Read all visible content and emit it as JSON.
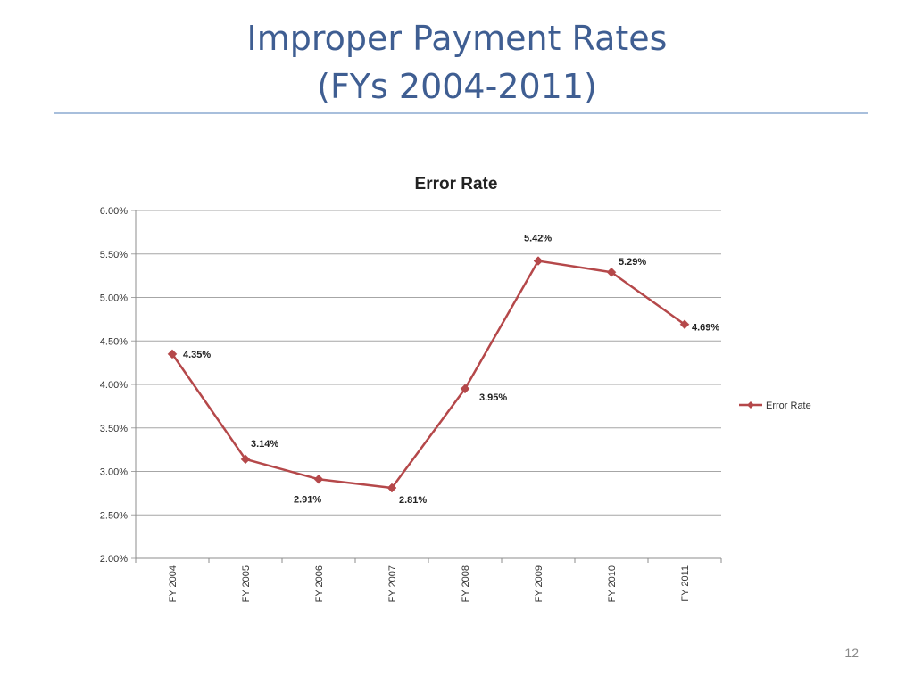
{
  "slide": {
    "title_line1": "Improper Payment Rates",
    "title_line2": "(FYs 2004-2011)",
    "page_number": "12"
  },
  "colors": {
    "title": "#3f5e92",
    "rule": "#a8bfdc",
    "series_line": "#b5484a",
    "gridline": "#a6a6a6"
  },
  "chart_data": {
    "type": "line",
    "title": "Error Rate",
    "xlabel": "",
    "ylabel": "",
    "categories": [
      "FY 2004",
      "FY 2005",
      "FY 2006",
      "FY 2007",
      "FY 2008",
      "FY 2009",
      "FY 2010",
      "FY 2011"
    ],
    "series": [
      {
        "name": "Error Rate",
        "values": [
          4.35,
          3.14,
          2.91,
          2.81,
          3.95,
          5.42,
          5.29,
          4.69
        ],
        "data_labels": [
          "4.35%",
          "3.14%",
          "2.91%",
          "2.81%",
          "3.95%",
          "5.42%",
          "5.29%",
          "4.69%"
        ],
        "marker": "diamond"
      }
    ],
    "ylim": [
      2.0,
      6.0
    ],
    "yticks": [
      2.0,
      2.5,
      3.0,
      3.5,
      4.0,
      4.5,
      5.0,
      5.5,
      6.0
    ],
    "ytick_labels": [
      "2.00%",
      "2.50%",
      "3.00%",
      "3.50%",
      "4.00%",
      "4.50%",
      "5.00%",
      "5.50%",
      "6.00%"
    ],
    "grid": true,
    "legend_position": "right"
  }
}
